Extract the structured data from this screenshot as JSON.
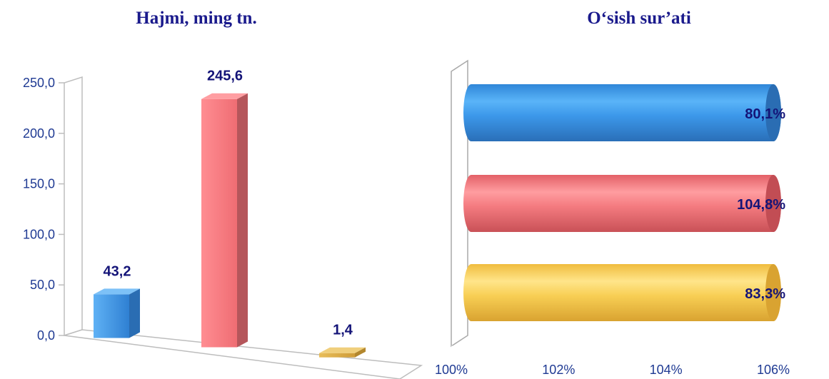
{
  "chart_data": [
    {
      "type": "bar",
      "title": "Hajmi, ming tn.",
      "categories": [
        "",
        "",
        ""
      ],
      "values": [
        43.2,
        245.6,
        1.4
      ],
      "value_labels": [
        "43,2",
        "245,6",
        "1,4"
      ],
      "colors": [
        "#3e95e6",
        "#f47b80",
        "#e2b24a"
      ],
      "yticks": [
        "0,0",
        "50,0",
        "100,0",
        "150,0",
        "200,0",
        "250,0"
      ],
      "ylim": [
        0,
        250
      ],
      "grid": false
    },
    {
      "type": "bar",
      "orientation": "horizontal",
      "title": "O‘sish sur’ati",
      "categories": [
        "",
        "",
        ""
      ],
      "values": [
        80.1,
        104.8,
        83.3
      ],
      "value_labels": [
        "80,1%",
        "104,8%",
        "83,3%"
      ],
      "colors": [
        "#3e95e6",
        "#f47b80",
        "#f8cf55"
      ],
      "xticks": [
        "100%",
        "102%",
        "104%",
        "106%"
      ],
      "xlim": [
        100,
        106
      ],
      "grid": false
    }
  ]
}
